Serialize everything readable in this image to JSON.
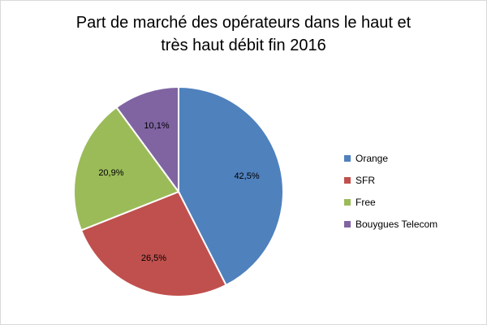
{
  "chart_data": {
    "type": "pie",
    "title_lines": [
      "Part de marché des opérateurs dans le haut et",
      "très haut débit fin 2016"
    ],
    "categories": [
      "Orange",
      "SFR",
      "Free",
      "Bouygues Telecom"
    ],
    "values": [
      42.5,
      26.5,
      20.9,
      10.1
    ],
    "value_labels": [
      "42,5%",
      "26,5%",
      "20,9%",
      "10,1%"
    ],
    "colors": [
      "#4f81bd",
      "#c0504d",
      "#9bbb59",
      "#8064a2"
    ],
    "legend_position": "right",
    "start_angle": "12 o'clock",
    "direction": "clockwise"
  }
}
